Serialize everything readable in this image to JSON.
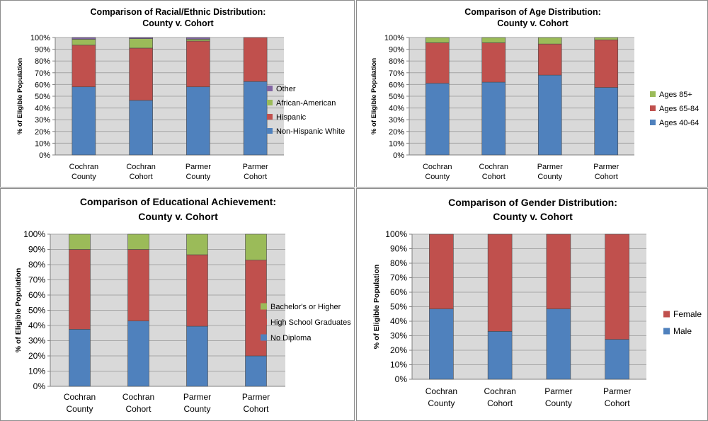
{
  "colors": {
    "blue": "#4F81BD",
    "red": "#C0504D",
    "green": "#9BBB59",
    "purple": "#8064A2",
    "plot_bg": "#D9D9D9",
    "grid": "#A6A6A6"
  },
  "chart_data": [
    {
      "type": "bar",
      "stacked": true,
      "title": "Comparison of Racial/Ethnic Distribution:",
      "subtitle": "County v. Cohort",
      "ylabel": "% of Eligible Population",
      "ylim": [
        0,
        100
      ],
      "yticks": [
        "0%",
        "10%",
        "20%",
        "30%",
        "40%",
        "50%",
        "60%",
        "70%",
        "80%",
        "90%",
        "100%"
      ],
      "categories": [
        [
          "Cochran",
          "County"
        ],
        [
          "Cochran",
          "Cohort"
        ],
        [
          "Parmer",
          "County"
        ],
        [
          "Parmer",
          "Cohort"
        ]
      ],
      "series": [
        {
          "name": "Non-Hispanic White",
          "color": "#4F81BD",
          "values": [
            58,
            46.5,
            58,
            62.5
          ]
        },
        {
          "name": "Hispanic",
          "color": "#C0504D",
          "values": [
            35.5,
            44.5,
            39,
            37.5
          ]
        },
        {
          "name": "African-American",
          "color": "#9BBB59",
          "values": [
            5,
            8,
            1.5,
            0
          ]
        },
        {
          "name": "Other",
          "color": "#8064A2",
          "values": [
            1.5,
            1,
            1.5,
            0
          ]
        }
      ],
      "legend_order": [
        "Other",
        "African-American",
        "Hispanic",
        "Non-Hispanic White"
      ],
      "legend_position": "right"
    },
    {
      "type": "bar",
      "stacked": true,
      "title": "Comparison of Age Distribution:",
      "subtitle": "County v. Cohort",
      "ylabel": "% of Eligible Population",
      "ylim": [
        0,
        100
      ],
      "yticks": [
        "0%",
        "10%",
        "20%",
        "30%",
        "40%",
        "50%",
        "60%",
        "70%",
        "80%",
        "90%",
        "100%"
      ],
      "categories": [
        [
          "Cochran",
          "County"
        ],
        [
          "Cochran",
          "Cohort"
        ],
        [
          "Parmer",
          "County"
        ],
        [
          "Parmer",
          "Cohort"
        ]
      ],
      "series": [
        {
          "name": "Ages 40-64",
          "color": "#4F81BD",
          "values": [
            61,
            62,
            68,
            57.5
          ]
        },
        {
          "name": "Ages 65-84",
          "color": "#C0504D",
          "values": [
            34.5,
            33.5,
            26.5,
            40.5
          ]
        },
        {
          "name": "Ages 85+",
          "color": "#9BBB59",
          "values": [
            4.5,
            4.5,
            5.5,
            2
          ]
        }
      ],
      "legend_order": [
        "Ages 85+",
        "Ages 65-84",
        "Ages 40-64"
      ],
      "legend_position": "right"
    },
    {
      "type": "bar",
      "stacked": true,
      "title": "Comparison of Educational Achievement:",
      "subtitle": "County v. Cohort",
      "ylabel": "% of Eligible Population",
      "ylim": [
        0,
        100
      ],
      "yticks": [
        "0%",
        "10%",
        "20%",
        "30%",
        "40%",
        "50%",
        "60%",
        "70%",
        "80%",
        "90%",
        "100%"
      ],
      "categories": [
        [
          "Cochran",
          "County"
        ],
        [
          "Cochran",
          "Cohort"
        ],
        [
          "Parmer",
          "County"
        ],
        [
          "Parmer",
          "Cohort"
        ]
      ],
      "series": [
        {
          "name": "No Diploma",
          "color": "#4F81BD",
          "values": [
            37.5,
            43,
            39.5,
            20
          ]
        },
        {
          "name": "High School Graduates",
          "color": "#C0504D",
          "values": [
            52.5,
            47,
            47,
            63
          ]
        },
        {
          "name": "Bachelor's or Higher",
          "color": "#9BBB59",
          "values": [
            10,
            10,
            13.5,
            17
          ]
        }
      ],
      "legend_order": [
        "Bachelor's or Higher",
        "High School Graduates",
        "No Diploma"
      ],
      "legend_position": "right"
    },
    {
      "type": "bar",
      "stacked": true,
      "title": "Comparison of Gender Distribution:",
      "subtitle": "County v. Cohort",
      "ylabel": "% of Eligible Population",
      "ylim": [
        0,
        100
      ],
      "yticks": [
        "0%",
        "10%",
        "20%",
        "30%",
        "40%",
        "50%",
        "60%",
        "70%",
        "80%",
        "90%",
        "100%"
      ],
      "categories": [
        [
          "Cochran",
          "County"
        ],
        [
          "Cochran",
          "Cohort"
        ],
        [
          "Parmer",
          "County"
        ],
        [
          "Parmer",
          "Cohort"
        ]
      ],
      "series": [
        {
          "name": "Male",
          "color": "#4F81BD",
          "values": [
            48.5,
            33,
            48.5,
            27.5
          ]
        },
        {
          "name": "Female",
          "color": "#C0504D",
          "values": [
            51.5,
            67,
            51.5,
            72.5
          ]
        }
      ],
      "legend_order": [
        "Female",
        "Male"
      ],
      "legend_position": "right"
    }
  ]
}
